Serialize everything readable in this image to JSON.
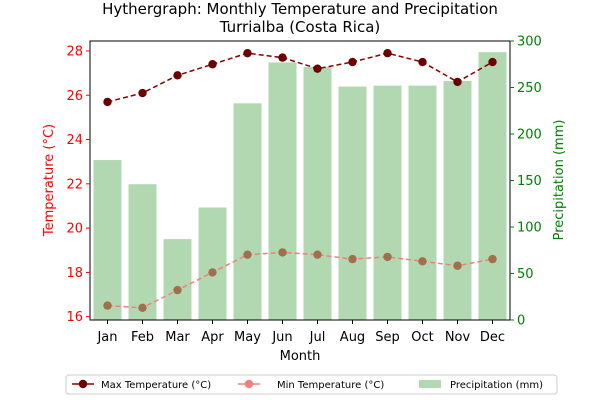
{
  "chart_data": {
    "type": "bar",
    "title_line1": "Hythergraph: Monthly Temperature and Precipitation",
    "title_line2": "Turrialba (Costa Rica)",
    "xlabel": "Month",
    "ylabel_left": "Temperature (°C)",
    "ylabel_right": "Precipitation (mm)",
    "categories": [
      "Jan",
      "Feb",
      "Mar",
      "Apr",
      "May",
      "Jun",
      "Jul",
      "Aug",
      "Sep",
      "Oct",
      "Nov",
      "Dec"
    ],
    "ylim_left": [
      15.85,
      28.45
    ],
    "ylim_right": [
      0,
      300
    ],
    "yticks_left": [
      16,
      18,
      20,
      22,
      24,
      26,
      28
    ],
    "yticks_right": [
      0,
      50,
      100,
      150,
      200,
      250,
      300
    ],
    "grid": false,
    "legend_position": "bottom-center",
    "series": [
      {
        "name": "Max Temperature (°C)",
        "kind": "line",
        "axis": "left",
        "color": "#8b0000",
        "values": [
          25.7,
          26.1,
          26.9,
          27.4,
          27.9,
          27.7,
          27.2,
          27.5,
          27.9,
          27.5,
          26.6,
          27.5
        ]
      },
      {
        "name": "Min Temperature (°C)",
        "kind": "line",
        "axis": "left",
        "color": "#f08080",
        "values": [
          16.5,
          16.4,
          17.2,
          18.0,
          18.8,
          18.9,
          18.8,
          18.6,
          18.7,
          18.5,
          18.3,
          18.6
        ]
      },
      {
        "name": "Precipitation (mm)",
        "kind": "bar",
        "axis": "right",
        "color": "#b2d8b2",
        "values": [
          172,
          146,
          87,
          121,
          233,
          277,
          272,
          251,
          252,
          252,
          257,
          288
        ]
      }
    ],
    "colors": {
      "left_axis": "#ff0000",
      "right_axis": "#008000",
      "max_marker": "#6b0000",
      "min_marker": "#a0704a"
    }
  }
}
